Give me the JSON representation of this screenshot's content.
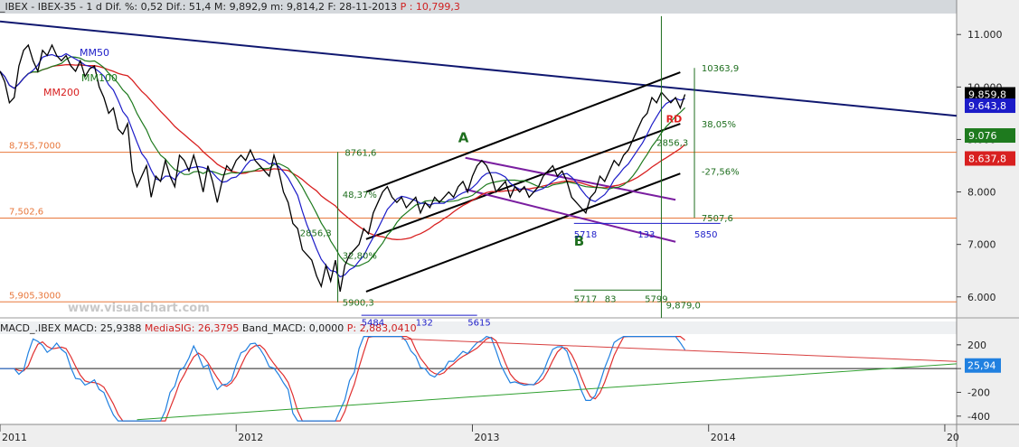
{
  "main_header": {
    "prefix": "_IBEX - IBEX-35 -   1 d Dif.  %: 0,52 Dif.: 51,4 M: 9,892,9 m: 9,814,2 F: 28-11-2013",
    "highlight": "P : 10,799,3"
  },
  "macd_header": {
    "prefix": "MACD_.IBEX MACD: 25,9388 ",
    "sig_label": "MediaSIG: 26,3795",
    "band_label": " Band_MACD: 0,0000 ",
    "p_label": "P: 2,883,0410"
  },
  "window_buttons": [
    "▲",
    "▼",
    "×"
  ],
  "watermark": "www.visualchart.com",
  "colors": {
    "price": "#000000",
    "mm50": "#1c1cc8",
    "mm100": "#1e7a1e",
    "mm200": "#d82020",
    "orange_levels": "#e8783c",
    "trendline": "#101870",
    "purple_channel": "#7a1ea0",
    "green_annot": "#1e6e1e",
    "macd": "#2080e0",
    "signal": "#e03030",
    "macd_resistance": "#d84040",
    "macd_support": "#30a030"
  },
  "chart_data": [
    {
      "type": "line",
      "name": "price",
      "x_axis": {
        "labels": [
          "2011",
          "2012",
          "2013",
          "2014",
          "20"
        ]
      },
      "ylim": [
        5600,
        11400
      ],
      "y_ticks": [
        "11.000",
        "10.000",
        "9.000",
        "8.000",
        "7.000",
        "6.000"
      ],
      "tags": [
        {
          "text": "9.859,8",
          "value": 9859.8,
          "bg": "#000000",
          "fg": "#ffffff"
        },
        {
          "text": "9.643,8",
          "value": 9643.8,
          "bg": "#1c1cc8",
          "fg": "#ffffff"
        },
        {
          "text": "9.076",
          "value": 9076,
          "bg": "#1e7a1e",
          "fg": "#ffffff"
        },
        {
          "text": "8.637,8",
          "value": 8637.8,
          "bg": "#d82020",
          "fg": "#ffffff"
        }
      ],
      "series": [
        {
          "name": "MM50",
          "color": "#1c1cc8"
        },
        {
          "name": "MM100",
          "color": "#1e7a1e"
        },
        {
          "name": "MM200",
          "color": "#d82020"
        }
      ],
      "horizontal_levels": [
        {
          "label": "8,755,7000",
          "value": 8755.7
        },
        {
          "label": "7,502,6",
          "value": 7502.6
        },
        {
          "label": "5,905,3000",
          "value": 5905.3
        }
      ],
      "points": [
        [
          2011.0,
          10300
        ],
        [
          2011.02,
          10100
        ],
        [
          2011.04,
          9700
        ],
        [
          2011.06,
          9800
        ],
        [
          2011.08,
          10400
        ],
        [
          2011.1,
          10700
        ],
        [
          2011.12,
          10800
        ],
        [
          2011.14,
          10500
        ],
        [
          2011.16,
          10300
        ],
        [
          2011.18,
          10700
        ],
        [
          2011.2,
          10600
        ],
        [
          2011.22,
          10800
        ],
        [
          2011.24,
          10600
        ],
        [
          2011.26,
          10500
        ],
        [
          2011.28,
          10600
        ],
        [
          2011.3,
          10400
        ],
        [
          2011.32,
          10300
        ],
        [
          2011.34,
          10500
        ],
        [
          2011.36,
          10200
        ],
        [
          2011.38,
          10350
        ],
        [
          2011.4,
          10400
        ],
        [
          2011.42,
          10000
        ],
        [
          2011.44,
          9800
        ],
        [
          2011.46,
          9500
        ],
        [
          2011.48,
          9600
        ],
        [
          2011.5,
          9200
        ],
        [
          2011.52,
          9100
        ],
        [
          2011.54,
          9300
        ],
        [
          2011.56,
          8400
        ],
        [
          2011.58,
          8100
        ],
        [
          2011.6,
          8300
        ],
        [
          2011.62,
          8500
        ],
        [
          2011.64,
          7900
        ],
        [
          2011.66,
          8300
        ],
        [
          2011.68,
          8200
        ],
        [
          2011.7,
          8600
        ],
        [
          2011.72,
          8300
        ],
        [
          2011.74,
          8100
        ],
        [
          2011.76,
          8700
        ],
        [
          2011.78,
          8600
        ],
        [
          2011.8,
          8400
        ],
        [
          2011.82,
          8700
        ],
        [
          2011.84,
          8400
        ],
        [
          2011.86,
          8000
        ],
        [
          2011.88,
          8500
        ],
        [
          2011.9,
          8200
        ],
        [
          2011.92,
          7800
        ],
        [
          2011.94,
          8200
        ],
        [
          2011.96,
          8500
        ],
        [
          2011.98,
          8400
        ],
        [
          2012.0,
          8600
        ],
        [
          2012.02,
          8700
        ],
        [
          2012.04,
          8600
        ],
        [
          2012.06,
          8800
        ],
        [
          2012.08,
          8600
        ],
        [
          2012.1,
          8500
        ],
        [
          2012.12,
          8400
        ],
        [
          2012.14,
          8300
        ],
        [
          2012.16,
          8700
        ],
        [
          2012.18,
          8400
        ],
        [
          2012.2,
          8000
        ],
        [
          2012.22,
          7800
        ],
        [
          2012.24,
          7400
        ],
        [
          2012.26,
          7300
        ],
        [
          2012.28,
          6900
        ],
        [
          2012.3,
          6800
        ],
        [
          2012.32,
          6700
        ],
        [
          2012.34,
          6400
        ],
        [
          2012.36,
          6200
        ],
        [
          2012.38,
          6600
        ],
        [
          2012.4,
          6300
        ],
        [
          2012.42,
          6700
        ],
        [
          2012.44,
          6100
        ],
        [
          2012.46,
          6600
        ],
        [
          2012.48,
          6800
        ],
        [
          2012.5,
          6900
        ],
        [
          2012.52,
          7000
        ],
        [
          2012.54,
          7300
        ],
        [
          2012.56,
          7200
        ],
        [
          2012.58,
          7600
        ],
        [
          2012.6,
          7800
        ],
        [
          2012.62,
          8000
        ],
        [
          2012.64,
          8100
        ],
        [
          2012.66,
          7900
        ],
        [
          2012.68,
          7800
        ],
        [
          2012.7,
          7900
        ],
        [
          2012.72,
          7700
        ],
        [
          2012.74,
          7800
        ],
        [
          2012.76,
          7900
        ],
        [
          2012.78,
          7600
        ],
        [
          2012.8,
          7800
        ],
        [
          2012.82,
          7700
        ],
        [
          2012.84,
          7900
        ],
        [
          2012.86,
          7800
        ],
        [
          2012.88,
          7900
        ],
        [
          2012.9,
          8000
        ],
        [
          2012.92,
          7900
        ],
        [
          2012.94,
          8100
        ],
        [
          2012.96,
          8200
        ],
        [
          2012.98,
          8000
        ],
        [
          2013.0,
          8300
        ],
        [
          2013.02,
          8500
        ],
        [
          2013.04,
          8600
        ],
        [
          2013.06,
          8500
        ],
        [
          2013.08,
          8300
        ],
        [
          2013.1,
          8000
        ],
        [
          2013.12,
          8100
        ],
        [
          2013.14,
          8200
        ],
        [
          2013.16,
          7900
        ],
        [
          2013.18,
          8100
        ],
        [
          2013.2,
          8000
        ],
        [
          2013.22,
          8100
        ],
        [
          2013.24,
          7900
        ],
        [
          2013.26,
          8000
        ],
        [
          2013.28,
          8100
        ],
        [
          2013.3,
          8300
        ],
        [
          2013.32,
          8400
        ],
        [
          2013.34,
          8500
        ],
        [
          2013.36,
          8300
        ],
        [
          2013.38,
          8400
        ],
        [
          2013.4,
          8200
        ],
        [
          2013.42,
          7900
        ],
        [
          2013.44,
          7800
        ],
        [
          2013.46,
          7700
        ],
        [
          2013.48,
          7600
        ],
        [
          2013.5,
          7900
        ],
        [
          2013.52,
          8000
        ],
        [
          2013.54,
          8300
        ],
        [
          2013.56,
          8200
        ],
        [
          2013.58,
          8400
        ],
        [
          2013.6,
          8600
        ],
        [
          2013.62,
          8500
        ],
        [
          2013.64,
          8700
        ],
        [
          2013.66,
          8800
        ],
        [
          2013.68,
          9000
        ],
        [
          2013.7,
          9200
        ],
        [
          2013.72,
          9400
        ],
        [
          2013.74,
          9500
        ],
        [
          2013.76,
          9800
        ],
        [
          2013.78,
          9700
        ],
        [
          2013.8,
          9900
        ],
        [
          2013.82,
          9800
        ],
        [
          2013.84,
          9700
        ],
        [
          2013.86,
          9800
        ],
        [
          2013.88,
          9600
        ],
        [
          2013.9,
          9860
        ]
      ],
      "annotations": {
        "pattern_labels": [
          "A",
          "B",
          "RD"
        ],
        "price_labels": [
          "10363,9",
          "8761,6",
          "2856,3",
          "2856,3",
          "7507,6",
          "5900,3",
          "9,879,0"
        ],
        "percent_labels": [
          "38,05%",
          "-27,56%",
          "48,37%",
          "32,80%"
        ],
        "time_labels": [
          "5718",
          "133",
          "5850",
          "5717",
          "83",
          "5799",
          "5484",
          "132",
          "5615"
        ]
      }
    },
    {
      "type": "line",
      "name": "macd",
      "ylim": [
        -470,
        290
      ],
      "y_ticks": [
        "200",
        "0",
        "-200",
        "-400"
      ],
      "tags": [
        {
          "text": "25,94",
          "value": 25.94,
          "bg": "#2080e0",
          "fg": "#ffffff"
        }
      ]
    }
  ]
}
